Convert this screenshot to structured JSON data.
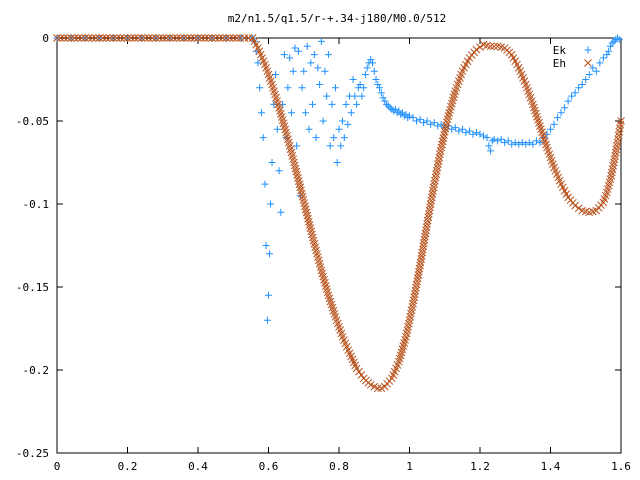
{
  "chart_data": {
    "type": "scatter",
    "title": "m2/n1.5/q1.5/r-+.34-j180/M0.0/512",
    "xlabel": "",
    "ylabel": "",
    "xlim": [
      0,
      1.6
    ],
    "ylim": [
      -0.25,
      0
    ],
    "xticks": [
      "0",
      "0.2",
      "0.4",
      "0.6",
      "0.8",
      "1",
      "1.2",
      "1.4",
      "1.6"
    ],
    "yticks": [
      "0",
      "-0.05",
      "-0.1",
      "-0.15",
      "-0.2",
      "-0.25"
    ],
    "grid": false,
    "legend_position": "top-right",
    "series": [
      {
        "name": "Ek",
        "marker": "plus",
        "color": "#1e90ff",
        "points": [
          [
            0.0,
            0
          ],
          [
            0.04,
            0
          ],
          [
            0.08,
            0
          ],
          [
            0.12,
            0
          ],
          [
            0.16,
            0
          ],
          [
            0.2,
            0
          ],
          [
            0.24,
            0
          ],
          [
            0.28,
            0
          ],
          [
            0.32,
            0
          ],
          [
            0.36,
            0
          ],
          [
            0.4,
            0
          ],
          [
            0.44,
            0
          ],
          [
            0.48,
            0
          ],
          [
            0.52,
            0
          ],
          [
            0.555,
            0
          ],
          [
            0.56,
            -0.002
          ],
          [
            0.565,
            -0.008
          ],
          [
            0.57,
            -0.015
          ],
          [
            0.575,
            -0.03
          ],
          [
            0.58,
            -0.045
          ],
          [
            0.585,
            -0.06
          ],
          [
            0.59,
            -0.088
          ],
          [
            0.593,
            -0.125
          ],
          [
            0.597,
            -0.17
          ],
          [
            0.6,
            -0.155
          ],
          [
            0.603,
            -0.13
          ],
          [
            0.606,
            -0.1
          ],
          [
            0.61,
            -0.075
          ],
          [
            0.615,
            -0.04
          ],
          [
            0.62,
            -0.022
          ],
          [
            0.625,
            -0.055
          ],
          [
            0.63,
            -0.08
          ],
          [
            0.635,
            -0.105
          ],
          [
            0.64,
            -0.04
          ],
          [
            0.645,
            -0.01
          ],
          [
            0.65,
            -0.06
          ],
          [
            0.655,
            -0.03
          ],
          [
            0.66,
            -0.012
          ],
          [
            0.665,
            -0.045
          ],
          [
            0.67,
            -0.02
          ],
          [
            0.675,
            -0.006
          ],
          [
            0.68,
            -0.065
          ],
          [
            0.685,
            -0.008
          ],
          [
            0.69,
            -0.095
          ],
          [
            0.695,
            -0.03
          ],
          [
            0.7,
            -0.02
          ],
          [
            0.705,
            -0.045
          ],
          [
            0.71,
            -0.005
          ],
          [
            0.715,
            -0.055
          ],
          [
            0.72,
            -0.015
          ],
          [
            0.725,
            -0.04
          ],
          [
            0.73,
            -0.01
          ],
          [
            0.735,
            -0.06
          ],
          [
            0.74,
            -0.018
          ],
          [
            0.745,
            -0.028
          ],
          [
            0.75,
            -0.002
          ],
          [
            0.755,
            -0.05
          ],
          [
            0.76,
            -0.02
          ],
          [
            0.765,
            -0.035
          ],
          [
            0.77,
            -0.01
          ],
          [
            0.775,
            -0.065
          ],
          [
            0.78,
            -0.04
          ],
          [
            0.785,
            -0.06
          ],
          [
            0.79,
            -0.03
          ],
          [
            0.795,
            -0.075
          ],
          [
            0.8,
            -0.055
          ],
          [
            0.805,
            -0.065
          ],
          [
            0.81,
            -0.05
          ],
          [
            0.815,
            -0.06
          ],
          [
            0.82,
            -0.04
          ],
          [
            0.825,
            -0.052
          ],
          [
            0.83,
            -0.035
          ],
          [
            0.835,
            -0.045
          ],
          [
            0.84,
            -0.025
          ],
          [
            0.845,
            -0.035
          ],
          [
            0.85,
            -0.04
          ],
          [
            0.855,
            -0.03
          ],
          [
            0.86,
            -0.028
          ],
          [
            0.865,
            -0.035
          ],
          [
            0.87,
            -0.03
          ],
          [
            0.875,
            -0.022
          ],
          [
            0.88,
            -0.018
          ],
          [
            0.885,
            -0.015
          ],
          [
            0.89,
            -0.013
          ],
          [
            0.895,
            -0.015
          ],
          [
            0.9,
            -0.02
          ],
          [
            0.905,
            -0.025
          ],
          [
            0.91,
            -0.028
          ],
          [
            0.915,
            -0.03
          ],
          [
            0.92,
            -0.033
          ],
          [
            0.925,
            -0.036
          ],
          [
            0.93,
            -0.038
          ],
          [
            0.935,
            -0.04
          ],
          [
            0.94,
            -0.041
          ],
          [
            0.945,
            -0.042
          ],
          [
            0.95,
            -0.043
          ],
          [
            0.955,
            -0.044
          ],
          [
            0.96,
            -0.043
          ],
          [
            0.965,
            -0.045
          ],
          [
            0.97,
            -0.044
          ],
          [
            0.975,
            -0.046
          ],
          [
            0.98,
            -0.045
          ],
          [
            0.985,
            -0.047
          ],
          [
            0.99,
            -0.046
          ],
          [
            0.995,
            -0.048
          ],
          [
            1.0,
            -0.047
          ],
          [
            1.01,
            -0.048
          ],
          [
            1.02,
            -0.05
          ],
          [
            1.03,
            -0.049
          ],
          [
            1.04,
            -0.051
          ],
          [
            1.05,
            -0.05
          ],
          [
            1.06,
            -0.052
          ],
          [
            1.07,
            -0.051
          ],
          [
            1.08,
            -0.053
          ],
          [
            1.09,
            -0.052
          ],
          [
            1.1,
            -0.054
          ],
          [
            1.11,
            -0.053
          ],
          [
            1.12,
            -0.055
          ],
          [
            1.13,
            -0.054
          ],
          [
            1.14,
            -0.056
          ],
          [
            1.15,
            -0.055
          ],
          [
            1.16,
            -0.057
          ],
          [
            1.17,
            -0.056
          ],
          [
            1.18,
            -0.058
          ],
          [
            1.19,
            -0.057
          ],
          [
            1.2,
            -0.058
          ],
          [
            1.21,
            -0.059
          ],
          [
            1.22,
            -0.06
          ],
          [
            1.225,
            -0.065
          ],
          [
            1.23,
            -0.068
          ],
          [
            1.235,
            -0.062
          ],
          [
            1.24,
            -0.061
          ],
          [
            1.25,
            -0.062
          ],
          [
            1.26,
            -0.061
          ],
          [
            1.27,
            -0.063
          ],
          [
            1.28,
            -0.062
          ],
          [
            1.29,
            -0.064
          ],
          [
            1.3,
            -0.063
          ],
          [
            1.31,
            -0.064
          ],
          [
            1.32,
            -0.063
          ],
          [
            1.33,
            -0.064
          ],
          [
            1.34,
            -0.063
          ],
          [
            1.35,
            -0.064
          ],
          [
            1.36,
            -0.062
          ],
          [
            1.37,
            -0.063
          ],
          [
            1.38,
            -0.06
          ],
          [
            1.39,
            -0.058
          ],
          [
            1.4,
            -0.055
          ],
          [
            1.41,
            -0.052
          ],
          [
            1.42,
            -0.048
          ],
          [
            1.43,
            -0.045
          ],
          [
            1.44,
            -0.042
          ],
          [
            1.45,
            -0.038
          ],
          [
            1.46,
            -0.035
          ],
          [
            1.47,
            -0.033
          ],
          [
            1.48,
            -0.03
          ],
          [
            1.49,
            -0.028
          ],
          [
            1.5,
            -0.025
          ],
          [
            1.51,
            -0.022
          ],
          [
            1.52,
            -0.018
          ],
          [
            1.53,
            -0.02
          ],
          [
            1.54,
            -0.015
          ],
          [
            1.55,
            -0.012
          ],
          [
            1.56,
            -0.01
          ],
          [
            1.565,
            -0.008
          ],
          [
            1.57,
            -0.005
          ],
          [
            1.575,
            -0.003
          ],
          [
            1.58,
            -0.002
          ],
          [
            1.585,
            -0.001
          ],
          [
            1.59,
            0.0
          ],
          [
            1.595,
            -0.001
          ]
        ]
      },
      {
        "name": "Eh",
        "marker": "cross",
        "color": "#b8511a",
        "points": [
          [
            0.0,
            0
          ],
          [
            0.04,
            0
          ],
          [
            0.08,
            0
          ],
          [
            0.12,
            0
          ],
          [
            0.16,
            0
          ],
          [
            0.2,
            0
          ],
          [
            0.24,
            0
          ],
          [
            0.28,
            0
          ],
          [
            0.32,
            0
          ],
          [
            0.36,
            0
          ],
          [
            0.4,
            0
          ],
          [
            0.44,
            0
          ],
          [
            0.48,
            0
          ],
          [
            0.52,
            0
          ],
          [
            0.555,
            0
          ],
          [
            0.57,
            -0.006
          ],
          [
            0.59,
            -0.016
          ],
          [
            0.61,
            -0.028
          ],
          [
            0.63,
            -0.042
          ],
          [
            0.65,
            -0.057
          ],
          [
            0.67,
            -0.073
          ],
          [
            0.69,
            -0.09
          ],
          [
            0.71,
            -0.107
          ],
          [
            0.73,
            -0.124
          ],
          [
            0.75,
            -0.14
          ],
          [
            0.77,
            -0.155
          ],
          [
            0.79,
            -0.168
          ],
          [
            0.81,
            -0.18
          ],
          [
            0.83,
            -0.19
          ],
          [
            0.85,
            -0.199
          ],
          [
            0.87,
            -0.205
          ],
          [
            0.89,
            -0.209
          ],
          [
            0.91,
            -0.211
          ],
          [
            0.92,
            -0.211
          ],
          [
            0.93,
            -0.21
          ],
          [
            0.95,
            -0.205
          ],
          [
            0.97,
            -0.195
          ],
          [
            0.99,
            -0.18
          ],
          [
            1.01,
            -0.16
          ],
          [
            1.03,
            -0.137
          ],
          [
            1.05,
            -0.112
          ],
          [
            1.07,
            -0.088
          ],
          [
            1.09,
            -0.066
          ],
          [
            1.11,
            -0.047
          ],
          [
            1.13,
            -0.032
          ],
          [
            1.15,
            -0.02
          ],
          [
            1.17,
            -0.012
          ],
          [
            1.19,
            -0.007
          ],
          [
            1.21,
            -0.004
          ],
          [
            1.23,
            -0.005
          ],
          [
            1.25,
            -0.005
          ],
          [
            1.27,
            -0.006
          ],
          [
            1.29,
            -0.01
          ],
          [
            1.31,
            -0.018
          ],
          [
            1.33,
            -0.028
          ],
          [
            1.35,
            -0.04
          ],
          [
            1.37,
            -0.053
          ],
          [
            1.39,
            -0.066
          ],
          [
            1.41,
            -0.078
          ],
          [
            1.43,
            -0.088
          ],
          [
            1.45,
            -0.096
          ],
          [
            1.47,
            -0.101
          ],
          [
            1.49,
            -0.104
          ],
          [
            1.51,
            -0.105
          ],
          [
            1.53,
            -0.104
          ],
          [
            1.55,
            -0.099
          ],
          [
            1.56,
            -0.093
          ],
          [
            1.57,
            -0.085
          ],
          [
            1.58,
            -0.075
          ],
          [
            1.59,
            -0.063
          ],
          [
            1.6,
            -0.05
          ]
        ]
      }
    ]
  }
}
